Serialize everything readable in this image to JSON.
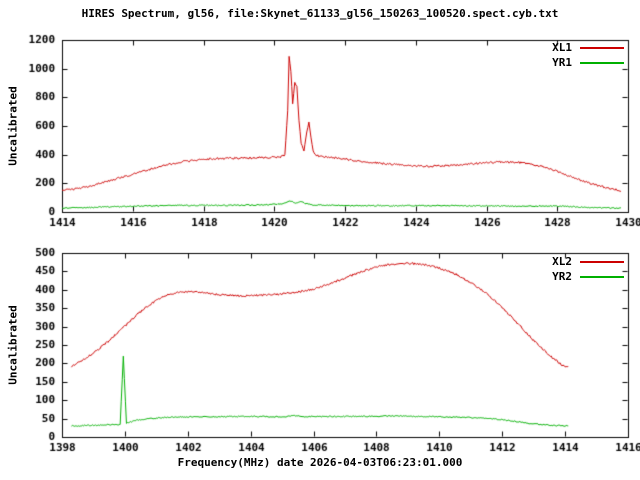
{
  "title": "HIRES Spectrum, gl56, file:Skynet_61133_gl56_150263_100520.spect.cyb.txt",
  "xlabel": "Frequency(MHz) date 2026-04-03T06:23:01.000",
  "text_color": "#000000",
  "background": "#ffffff",
  "chart_data": [
    {
      "type": "line",
      "ylabel": "Uncalibrated",
      "xlim": [
        1414,
        1430
      ],
      "ylim": [
        0,
        1200
      ],
      "xticks": [
        1414,
        1416,
        1418,
        1420,
        1422,
        1424,
        1426,
        1428,
        1430
      ],
      "yticks": [
        0,
        200,
        400,
        600,
        800,
        1000,
        1200
      ],
      "grid": false,
      "legend_position": "top-right",
      "series": [
        {
          "name": "XL1",
          "color": "#cc0000",
          "noise": 2.0,
          "points": [
            [
              1414.0,
              150
            ],
            [
              1414.3,
              158
            ],
            [
              1414.6,
              170
            ],
            [
              1415.0,
              195
            ],
            [
              1415.4,
              222
            ],
            [
              1415.8,
              250
            ],
            [
              1416.2,
              278
            ],
            [
              1416.6,
              305
            ],
            [
              1417.0,
              330
            ],
            [
              1417.4,
              350
            ],
            [
              1417.8,
              362
            ],
            [
              1418.2,
              370
            ],
            [
              1418.6,
              374
            ],
            [
              1419.0,
              376
            ],
            [
              1419.4,
              378
            ],
            [
              1419.8,
              380
            ],
            [
              1420.0,
              382
            ],
            [
              1420.2,
              385
            ],
            [
              1420.3,
              400
            ],
            [
              1420.38,
              700
            ],
            [
              1420.42,
              1090
            ],
            [
              1420.47,
              980
            ],
            [
              1420.52,
              760
            ],
            [
              1420.58,
              900
            ],
            [
              1420.64,
              880
            ],
            [
              1420.7,
              640
            ],
            [
              1420.76,
              480
            ],
            [
              1420.84,
              430
            ],
            [
              1420.92,
              560
            ],
            [
              1420.98,
              630
            ],
            [
              1421.04,
              520
            ],
            [
              1421.1,
              420
            ],
            [
              1421.2,
              395
            ],
            [
              1421.4,
              385
            ],
            [
              1421.7,
              378
            ],
            [
              1422.0,
              368
            ],
            [
              1422.4,
              355
            ],
            [
              1422.8,
              345
            ],
            [
              1423.2,
              335
            ],
            [
              1423.6,
              328
            ],
            [
              1424.0,
              322
            ],
            [
              1424.4,
              320
            ],
            [
              1424.8,
              322
            ],
            [
              1425.2,
              328
            ],
            [
              1425.6,
              336
            ],
            [
              1426.0,
              344
            ],
            [
              1426.4,
              350
            ],
            [
              1426.8,
              348
            ],
            [
              1427.2,
              338
            ],
            [
              1427.6,
              315
            ],
            [
              1428.0,
              282
            ],
            [
              1428.4,
              245
            ],
            [
              1428.8,
              210
            ],
            [
              1429.2,
              180
            ],
            [
              1429.6,
              158
            ],
            [
              1429.8,
              150
            ]
          ]
        },
        {
          "name": "YR1",
          "color": "#00b000",
          "noise": 1.2,
          "points": [
            [
              1414.0,
              28
            ],
            [
              1415.0,
              33
            ],
            [
              1416.0,
              40
            ],
            [
              1417.0,
              45
            ],
            [
              1418.0,
              46
            ],
            [
              1419.0,
              47
            ],
            [
              1419.8,
              50
            ],
            [
              1420.3,
              60
            ],
            [
              1420.45,
              78
            ],
            [
              1420.6,
              62
            ],
            [
              1420.75,
              72
            ],
            [
              1420.9,
              58
            ],
            [
              1421.1,
              50
            ],
            [
              1421.5,
              47
            ],
            [
              1422.0,
              45
            ],
            [
              1423.0,
              44
            ],
            [
              1424.0,
              44
            ],
            [
              1425.0,
              44
            ],
            [
              1426.0,
              43
            ],
            [
              1427.0,
              40
            ],
            [
              1427.8,
              42
            ],
            [
              1428.2,
              40
            ],
            [
              1428.8,
              33
            ],
            [
              1429.4,
              28
            ],
            [
              1429.8,
              26
            ]
          ]
        }
      ]
    },
    {
      "type": "line",
      "ylabel": "Uncalibrated",
      "xlim": [
        1398,
        1416
      ],
      "ylim": [
        0,
        500
      ],
      "xticks": [
        1398,
        1400,
        1402,
        1404,
        1406,
        1408,
        1410,
        1412,
        1414,
        1416
      ],
      "yticks": [
        0,
        50,
        100,
        150,
        200,
        250,
        300,
        350,
        400,
        450,
        500
      ],
      "grid": false,
      "legend_position": "top-right",
      "series": [
        {
          "name": "XL2",
          "color": "#cc0000",
          "noise": 2.0,
          "points": [
            [
              1398.3,
              192
            ],
            [
              1398.6,
              205
            ],
            [
              1399.0,
              228
            ],
            [
              1399.4,
              255
            ],
            [
              1399.8,
              285
            ],
            [
              1400.2,
              318
            ],
            [
              1400.6,
              348
            ],
            [
              1401.0,
              372
            ],
            [
              1401.4,
              388
            ],
            [
              1401.8,
              394
            ],
            [
              1402.2,
              395
            ],
            [
              1402.6,
              391
            ],
            [
              1403.0,
              387
            ],
            [
              1403.5,
              384
            ],
            [
              1404.0,
              384
            ],
            [
              1404.5,
              386
            ],
            [
              1405.0,
              389
            ],
            [
              1405.5,
              394
            ],
            [
              1406.0,
              402
            ],
            [
              1406.5,
              416
            ],
            [
              1407.0,
              432
            ],
            [
              1407.5,
              449
            ],
            [
              1408.0,
              462
            ],
            [
              1408.5,
              470
            ],
            [
              1409.0,
              472
            ],
            [
              1409.5,
              469
            ],
            [
              1410.0,
              459
            ],
            [
              1410.5,
              443
            ],
            [
              1411.0,
              420
            ],
            [
              1411.5,
              390
            ],
            [
              1412.0,
              352
            ],
            [
              1412.5,
              308
            ],
            [
              1413.0,
              262
            ],
            [
              1413.5,
              222
            ],
            [
              1413.9,
              196
            ],
            [
              1414.1,
              190
            ]
          ]
        },
        {
          "name": "YR2",
          "color": "#00b000",
          "noise": 1.2,
          "points": [
            [
              1398.3,
              30
            ],
            [
              1399.0,
              32
            ],
            [
              1399.5,
              33
            ],
            [
              1399.85,
              34
            ],
            [
              1399.95,
              220
            ],
            [
              1400.05,
              38
            ],
            [
              1400.4,
              46
            ],
            [
              1400.8,
              50
            ],
            [
              1401.2,
              53
            ],
            [
              1402.0,
              55
            ],
            [
              1403.0,
              55
            ],
            [
              1404.0,
              56
            ],
            [
              1405.0,
              55
            ],
            [
              1405.4,
              58
            ],
            [
              1405.7,
              55
            ],
            [
              1406.5,
              56
            ],
            [
              1407.5,
              56
            ],
            [
              1408.5,
              57
            ],
            [
              1409.5,
              56
            ],
            [
              1410.5,
              54
            ],
            [
              1411.3,
              52
            ],
            [
              1412.0,
              47
            ],
            [
              1412.6,
              40
            ],
            [
              1413.2,
              34
            ],
            [
              1413.8,
              31
            ],
            [
              1414.1,
              30
            ]
          ]
        }
      ]
    }
  ]
}
